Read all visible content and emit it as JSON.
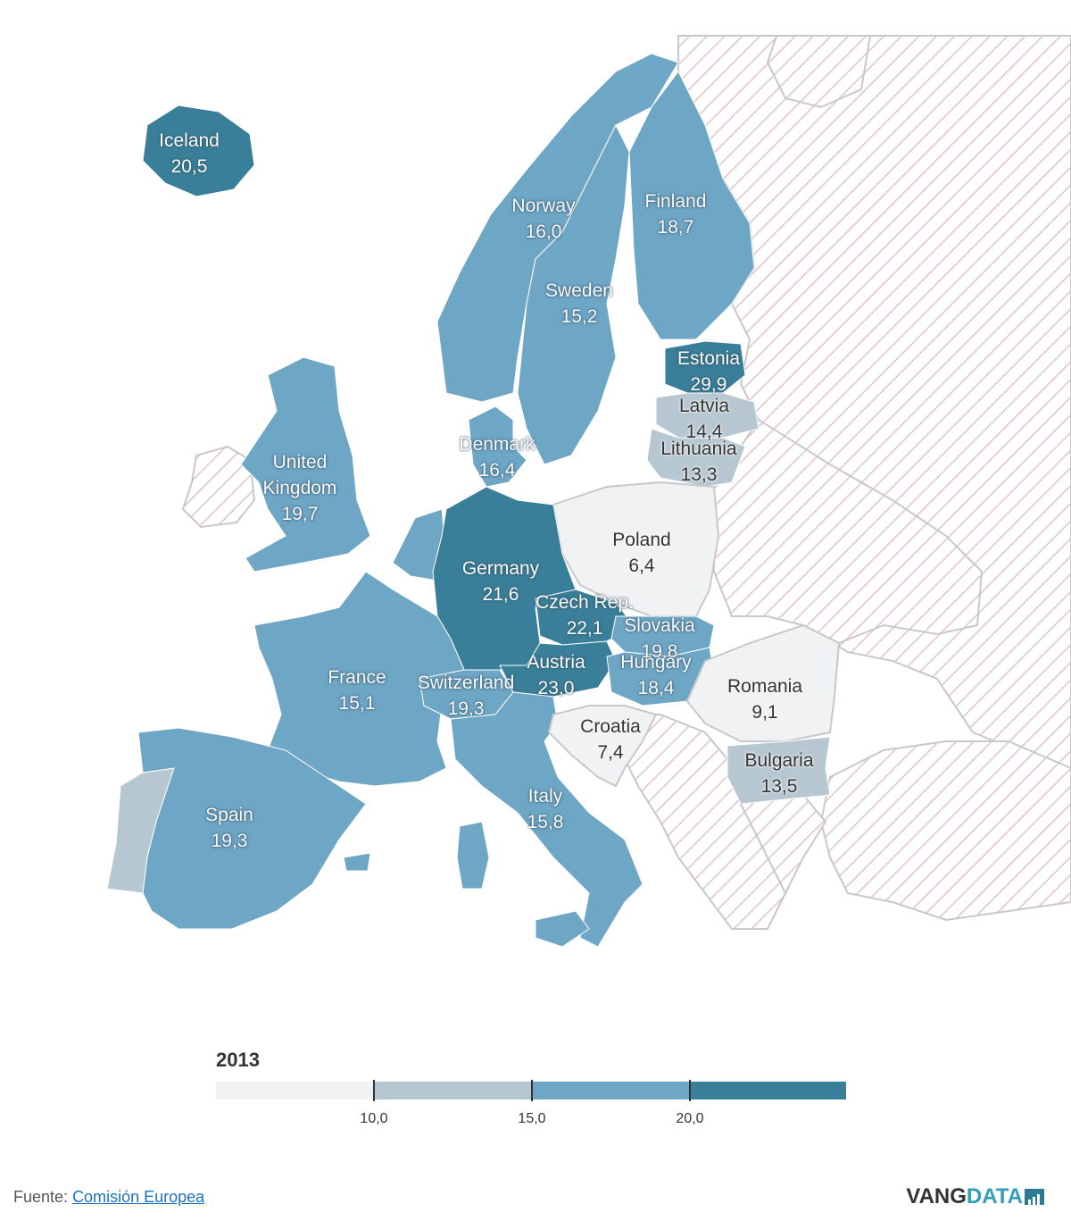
{
  "map": {
    "colors": {
      "bin_under_10": "#f1f2f3",
      "bin_10_15": "#b7c7d1",
      "bin_15_20": "#6ea6c6",
      "bin_over_20": "#3a7f99",
      "no_data_hatch": "#e8c8c8",
      "border": "#c8c8c8",
      "sea": "#ffffff"
    },
    "countries": [
      {
        "name": "Iceland",
        "value": "20,5",
        "bin": "bin_over_20"
      },
      {
        "name": "Norway",
        "value": "16,0",
        "bin": "bin_15_20"
      },
      {
        "name": "Finland",
        "value": "18,7",
        "bin": "bin_15_20"
      },
      {
        "name": "Sweden",
        "value": "15,2",
        "bin": "bin_15_20"
      },
      {
        "name": "Estonia",
        "value": "29,9",
        "bin": "bin_over_20"
      },
      {
        "name": "Latvia",
        "value": "14,4",
        "bin": "bin_10_15"
      },
      {
        "name": "Lithuania",
        "value": "13,3",
        "bin": "bin_10_15"
      },
      {
        "name": "Denmark",
        "value": "16,4",
        "bin": "bin_15_20"
      },
      {
        "name": "United Kingdom",
        "value": "19,7",
        "bin": "bin_15_20"
      },
      {
        "name": "Poland",
        "value": "6,4",
        "bin": "bin_under_10"
      },
      {
        "name": "Germany",
        "value": "21,6",
        "bin": "bin_over_20"
      },
      {
        "name": "Czech Rep.",
        "value": "22,1",
        "bin": "bin_over_20"
      },
      {
        "name": "Slovakia",
        "value": "19,8",
        "bin": "bin_15_20"
      },
      {
        "name": "Austria",
        "value": "23,0",
        "bin": "bin_over_20"
      },
      {
        "name": "Hungary",
        "value": "18,4",
        "bin": "bin_15_20"
      },
      {
        "name": "France",
        "value": "15,1",
        "bin": "bin_15_20"
      },
      {
        "name": "Switzerland",
        "value": "19,3",
        "bin": "bin_15_20"
      },
      {
        "name": "Romania",
        "value": "9,1",
        "bin": "bin_under_10"
      },
      {
        "name": "Croatia",
        "value": "7,4",
        "bin": "bin_under_10"
      },
      {
        "name": "Bulgaria",
        "value": "13,5",
        "bin": "bin_10_15"
      },
      {
        "name": "Italy",
        "value": "15,8",
        "bin": "bin_15_20"
      },
      {
        "name": "Spain",
        "value": "19,3",
        "bin": "bin_15_20"
      }
    ]
  },
  "legend": {
    "title": "2013",
    "ticks": [
      "10,0",
      "15,0",
      "20,0"
    ],
    "bins": [
      {
        "color": "#f1f2f3"
      },
      {
        "color": "#b7c7d1"
      },
      {
        "color": "#6ea6c6"
      },
      {
        "color": "#3a7f99"
      }
    ]
  },
  "footer": {
    "source_label": "Fuente:",
    "source_link": "Comisión Europea",
    "brand_main": "VANG",
    "brand_accent": "DATA"
  }
}
